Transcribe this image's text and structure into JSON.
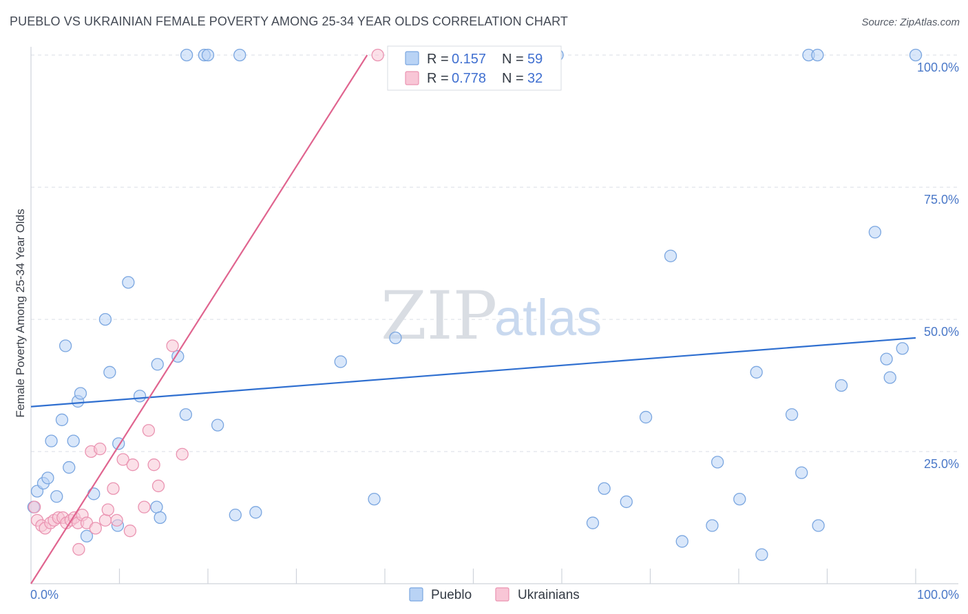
{
  "header": {
    "title": "PUEBLO VS UKRAINIAN FEMALE POVERTY AMONG 25-34 YEAR OLDS CORRELATION CHART",
    "source": "Source: ZipAtlas.com"
  },
  "watermark": {
    "zip": "ZIP",
    "atlas": "atlas"
  },
  "colors": {
    "pueblo_fill": "#b9d3f5",
    "pueblo_stroke": "#7aa6e0",
    "pueblo_line": "#2f6fd0",
    "ukr_fill": "#f8c6d6",
    "ukr_stroke": "#ea93b1",
    "ukr_line": "#e0648f",
    "grid": "#d9dde4",
    "axis_text": "#4a78c8"
  },
  "legend": {
    "rows": [
      {
        "r_label": "R =",
        "r_value": "0.157",
        "n_label": "N =",
        "n_value": "59"
      },
      {
        "r_label": "R =",
        "r_value": "0.778",
        "n_label": "N =",
        "n_value": "32"
      }
    ]
  },
  "bottom_legend": {
    "items": [
      "Pueblo",
      "Ukrainians"
    ]
  },
  "chart_data": {
    "type": "scatter",
    "title": "PUEBLO VS UKRAINIAN FEMALE POVERTY AMONG 25-34 YEAR OLDS CORRELATION CHART",
    "xlabel": "",
    "ylabel": "Female Poverty Among 25-34 Year Olds",
    "xlim": [
      0,
      100
    ],
    "ylim": [
      0,
      100
    ],
    "x_tick_labels": [
      "0.0%",
      "100.0%"
    ],
    "y_ticks": [
      25,
      50,
      75,
      100
    ],
    "y_tick_labels": [
      "25.0%",
      "50.0%",
      "75.0%",
      "100.0%"
    ],
    "grid": true,
    "legend_position": "top-center",
    "series": [
      {
        "name": "Pueblo",
        "r": 0.157,
        "n": 59,
        "trend": {
          "x": [
            0,
            100
          ],
          "y": [
            33.5,
            46.5
          ]
        },
        "points": [
          [
            0.3,
            14.5
          ],
          [
            0.7,
            17.5
          ],
          [
            1.4,
            19.0
          ],
          [
            1.9,
            20.0
          ],
          [
            2.3,
            27.0
          ],
          [
            2.9,
            16.5
          ],
          [
            3.5,
            31.0
          ],
          [
            3.9,
            45.0
          ],
          [
            4.3,
            22.0
          ],
          [
            4.8,
            27.0
          ],
          [
            5.3,
            34.5
          ],
          [
            5.6,
            36.0
          ],
          [
            6.3,
            9.0
          ],
          [
            7.1,
            17.0
          ],
          [
            8.4,
            50.0
          ],
          [
            8.9,
            40.0
          ],
          [
            9.8,
            11.0
          ],
          [
            9.9,
            26.5
          ],
          [
            11.0,
            57.0
          ],
          [
            12.3,
            35.5
          ],
          [
            14.2,
            14.5
          ],
          [
            14.3,
            41.5
          ],
          [
            14.6,
            12.5
          ],
          [
            16.6,
            43.0
          ],
          [
            17.5,
            32.0
          ],
          [
            17.6,
            100.0
          ],
          [
            19.6,
            100.0
          ],
          [
            20.0,
            100.0
          ],
          [
            21.1,
            30.0
          ],
          [
            23.1,
            13.0
          ],
          [
            23.6,
            100.0
          ],
          [
            25.4,
            13.5
          ],
          [
            35.0,
            42.0
          ],
          [
            38.8,
            16.0
          ],
          [
            41.2,
            46.5
          ],
          [
            43.1,
            100.0
          ],
          [
            59.5,
            100.0
          ],
          [
            63.5,
            11.5
          ],
          [
            64.8,
            18.0
          ],
          [
            67.3,
            15.5
          ],
          [
            69.5,
            31.5
          ],
          [
            72.3,
            62.0
          ],
          [
            73.6,
            8.0
          ],
          [
            77.0,
            11.0
          ],
          [
            77.6,
            23.0
          ],
          [
            80.1,
            16.0
          ],
          [
            82.0,
            40.0
          ],
          [
            82.6,
            5.5
          ],
          [
            86.0,
            32.0
          ],
          [
            87.1,
            21.0
          ],
          [
            87.9,
            100.0
          ],
          [
            88.9,
            100.0
          ],
          [
            89.0,
            11.0
          ],
          [
            91.6,
            37.5
          ],
          [
            95.4,
            66.5
          ],
          [
            96.7,
            42.5
          ],
          [
            97.1,
            39.0
          ],
          [
            98.5,
            44.5
          ],
          [
            100.0,
            100.0
          ]
        ]
      },
      {
        "name": "Ukrainians",
        "r": 0.778,
        "n": 32,
        "trend": {
          "x": [
            0,
            38.0
          ],
          "y": [
            0,
            100
          ]
        },
        "points": [
          [
            0.4,
            14.5
          ],
          [
            0.7,
            12.0
          ],
          [
            1.2,
            11.0
          ],
          [
            1.6,
            10.5
          ],
          [
            2.2,
            11.5
          ],
          [
            2.6,
            12.0
          ],
          [
            3.1,
            12.5
          ],
          [
            3.6,
            12.5
          ],
          [
            4.0,
            11.5
          ],
          [
            4.5,
            12.0
          ],
          [
            4.9,
            12.5
          ],
          [
            5.3,
            11.5
          ],
          [
            5.4,
            6.5
          ],
          [
            5.8,
            13.0
          ],
          [
            6.3,
            11.5
          ],
          [
            6.8,
            25.0
          ],
          [
            7.3,
            10.5
          ],
          [
            7.8,
            25.5
          ],
          [
            8.4,
            12.0
          ],
          [
            8.7,
            14.0
          ],
          [
            9.3,
            18.0
          ],
          [
            9.7,
            12.0
          ],
          [
            10.4,
            23.5
          ],
          [
            11.2,
            10.0
          ],
          [
            11.5,
            22.5
          ],
          [
            12.8,
            14.5
          ],
          [
            13.3,
            29.0
          ],
          [
            13.9,
            22.5
          ],
          [
            14.4,
            18.5
          ],
          [
            16.0,
            45.0
          ],
          [
            17.1,
            24.5
          ],
          [
            39.2,
            100.0
          ]
        ]
      }
    ]
  }
}
